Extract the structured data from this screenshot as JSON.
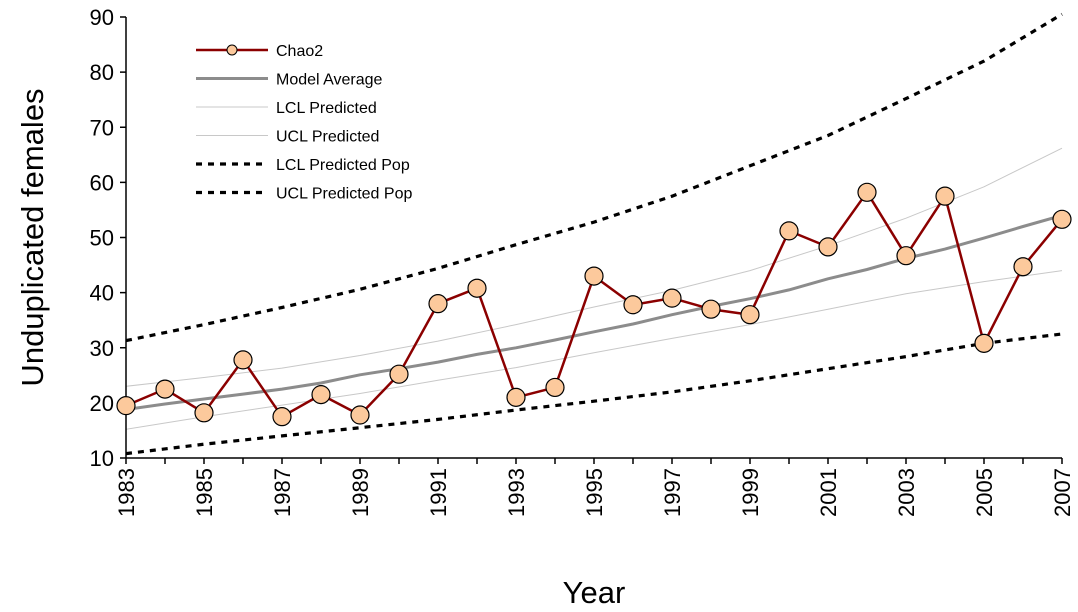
{
  "chart_data": {
    "type": "line",
    "xlabel": "Year",
    "ylabel": "Unduplicated females",
    "xlim": [
      1983,
      2007
    ],
    "ylim": [
      10,
      90
    ],
    "x_ticks": [
      "1983",
      "1985",
      "1987",
      "1989",
      "1991",
      "1993",
      "1995",
      "1997",
      "1999",
      "2001",
      "2003",
      "2005",
      "2007"
    ],
    "y_ticks": [
      "10",
      "20",
      "30",
      "40",
      "50",
      "60",
      "70",
      "80",
      "90"
    ],
    "grid": false,
    "legend_position": "top-left",
    "series": [
      {
        "name": "Chao2",
        "style": "line-markers",
        "color": "#8b0000",
        "marker_color": "#fcc99c",
        "x": [
          1983,
          1984,
          1985,
          1986,
          1987,
          1988,
          1989,
          1990,
          1991,
          1992,
          1993,
          1994,
          1995,
          1996,
          1997,
          1998,
          1999,
          2000,
          2001,
          2002,
          2003,
          2004,
          2005,
          2006,
          2007
        ],
        "values": [
          19.5,
          22.5,
          18.2,
          27.8,
          17.5,
          21.5,
          17.8,
          25.2,
          38.0,
          40.8,
          21.0,
          22.8,
          43.0,
          37.8,
          39.0,
          37.0,
          36.0,
          51.2,
          48.3,
          58.2,
          46.7,
          57.5,
          30.8,
          44.7,
          53.3
        ]
      },
      {
        "name": "Model Average",
        "style": "solid-thick",
        "color": "#8c8c8c",
        "x": [
          1983,
          1984,
          1985,
          1986,
          1987,
          1988,
          1989,
          1990,
          1991,
          1992,
          1993,
          1994,
          1995,
          1996,
          1997,
          1998,
          1999,
          2000,
          2001,
          2002,
          2003,
          2004,
          2005,
          2006,
          2007
        ],
        "values": [
          18.8,
          19.8,
          20.7,
          21.6,
          22.5,
          23.6,
          25.1,
          26.2,
          27.4,
          28.8,
          30.0,
          31.4,
          32.9,
          34.3,
          36.0,
          37.5,
          38.9,
          40.5,
          42.5,
          44.2,
          46.2,
          47.9,
          49.9,
          52.0,
          54.0
        ]
      },
      {
        "name": "LCL Predicted",
        "style": "solid-thin",
        "color": "#c8c8c8",
        "x": [
          1983,
          1985,
          1987,
          1989,
          1991,
          1993,
          1995,
          1997,
          1999,
          2001,
          2003,
          2005,
          2007
        ],
        "values": [
          15.2,
          17.5,
          19.6,
          21.7,
          24.1,
          26.4,
          29.1,
          31.7,
          34.2,
          37.0,
          39.8,
          42.0,
          44.0
        ]
      },
      {
        "name": "UCL Predicted",
        "style": "solid-thin",
        "color": "#c8c8c8",
        "x": [
          1983,
          1985,
          1987,
          1989,
          1991,
          1993,
          1995,
          1997,
          1999,
          2001,
          2003,
          2005,
          2007
        ],
        "values": [
          23.0,
          24.6,
          26.3,
          28.6,
          31.2,
          34.2,
          37.4,
          40.4,
          44.0,
          48.5,
          53.5,
          59.2,
          66.2
        ]
      },
      {
        "name": "LCL Predicted Pop",
        "style": "dotted-thick",
        "color": "#000000",
        "x": [
          1983,
          1985,
          1987,
          1989,
          1991,
          1993,
          1995,
          1997,
          1999,
          2001,
          2003,
          2005,
          2007
        ],
        "values": [
          10.8,
          12.5,
          14.0,
          15.5,
          17.0,
          18.7,
          20.3,
          22.0,
          24.0,
          26.2,
          28.4,
          30.8,
          32.5
        ]
      },
      {
        "name": "UCL Predicted Pop",
        "style": "dotted-thick",
        "color": "#000000",
        "x": [
          1983,
          1985,
          1987,
          1989,
          1991,
          1993,
          1995,
          1997,
          1999,
          2001,
          2003,
          2005,
          2007
        ],
        "values": [
          31.3,
          34.2,
          37.3,
          40.6,
          44.4,
          48.7,
          52.8,
          57.5,
          63.0,
          68.5,
          75.2,
          82.0,
          90.5
        ]
      }
    ]
  }
}
